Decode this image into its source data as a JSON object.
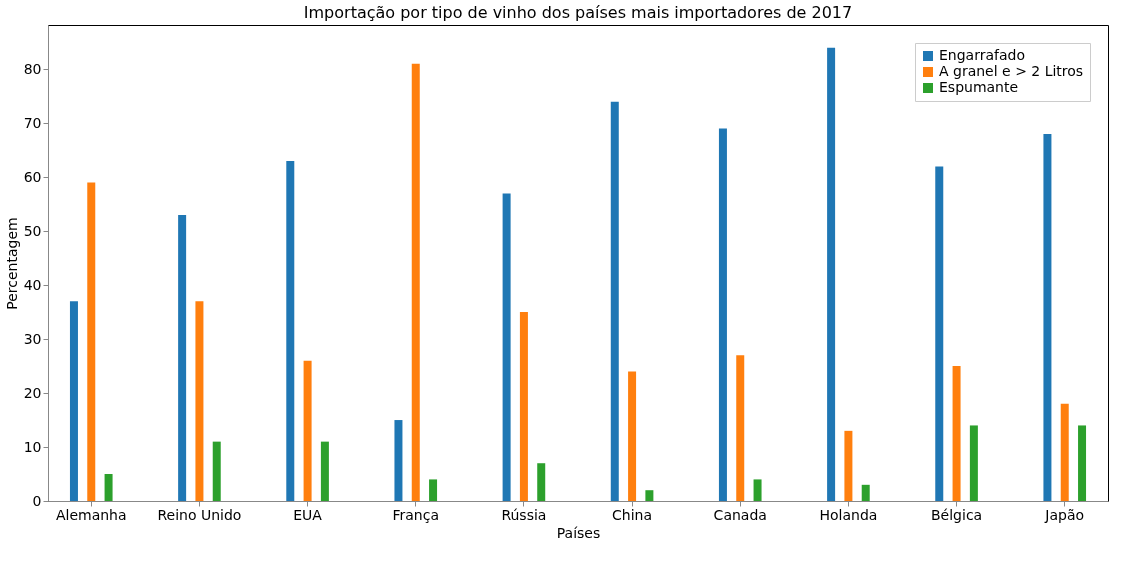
{
  "chart_data": {
    "type": "bar",
    "title": "Importação por tipo de vinho dos países mais importadores de 2017",
    "xlabel": "Países",
    "ylabel": "Percentagem",
    "categories": [
      "Alemanha",
      "Reino Unido",
      "EUA",
      "França",
      "Rússia",
      "China",
      "Canada",
      "Holanda",
      "Bélgica",
      "Japão"
    ],
    "series": [
      {
        "name": "Engarrafado",
        "color": "#1f77b4",
        "values": [
          37,
          53,
          63,
          15,
          57,
          74,
          69,
          84,
          62,
          68
        ]
      },
      {
        "name": "A granel e > 2 Litros",
        "color": "#ff7f0e",
        "values": [
          59,
          37,
          26,
          81,
          35,
          24,
          27,
          13,
          25,
          18
        ]
      },
      {
        "name": "Espumante",
        "color": "#2ca02c",
        "values": [
          5,
          11,
          11,
          4,
          7,
          2,
          4,
          3,
          14,
          14
        ]
      }
    ],
    "ylim": [
      0,
      88.2
    ],
    "yticks": [
      0,
      10,
      20,
      30,
      40,
      50,
      60,
      70,
      80
    ],
    "grid": false,
    "legend": "top right"
  }
}
